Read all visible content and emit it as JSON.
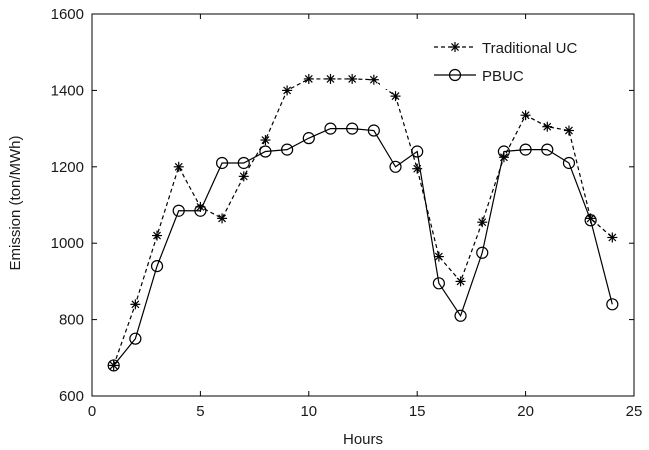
{
  "chart_data": {
    "type": "line",
    "title": "",
    "xlabel": "Hours",
    "ylabel": "Emission (ton/MWh)",
    "xlim": [
      0,
      25
    ],
    "ylim": [
      600,
      1600
    ],
    "xticks": [
      0,
      5,
      10,
      15,
      20,
      25
    ],
    "yticks": [
      600,
      800,
      1000,
      1200,
      1400,
      1600
    ],
    "grid": false,
    "legend_position": "top-right",
    "x": [
      1,
      2,
      3,
      4,
      5,
      6,
      7,
      8,
      9,
      10,
      11,
      12,
      13,
      14,
      15,
      16,
      17,
      18,
      19,
      20,
      21,
      22,
      23,
      24
    ],
    "series": [
      {
        "name": "Traditional UC",
        "line_style": "dashed",
        "marker": "asterisk",
        "color": "#000000",
        "values": [
          680,
          840,
          1020,
          1200,
          1095,
          1065,
          1175,
          1270,
          1400,
          1430,
          1430,
          1430,
          1428,
          1385,
          1195,
          965,
          900,
          1055,
          1225,
          1335,
          1305,
          1295,
          1065,
          1015
        ]
      },
      {
        "name": "PBUC",
        "line_style": "solid",
        "marker": "circle",
        "color": "#000000",
        "values": [
          680,
          750,
          940,
          1085,
          1085,
          1210,
          1210,
          1240,
          1245,
          1275,
          1300,
          1300,
          1295,
          1200,
          1240,
          895,
          810,
          975,
          1240,
          1245,
          1245,
          1210,
          1060,
          840
        ]
      }
    ]
  }
}
